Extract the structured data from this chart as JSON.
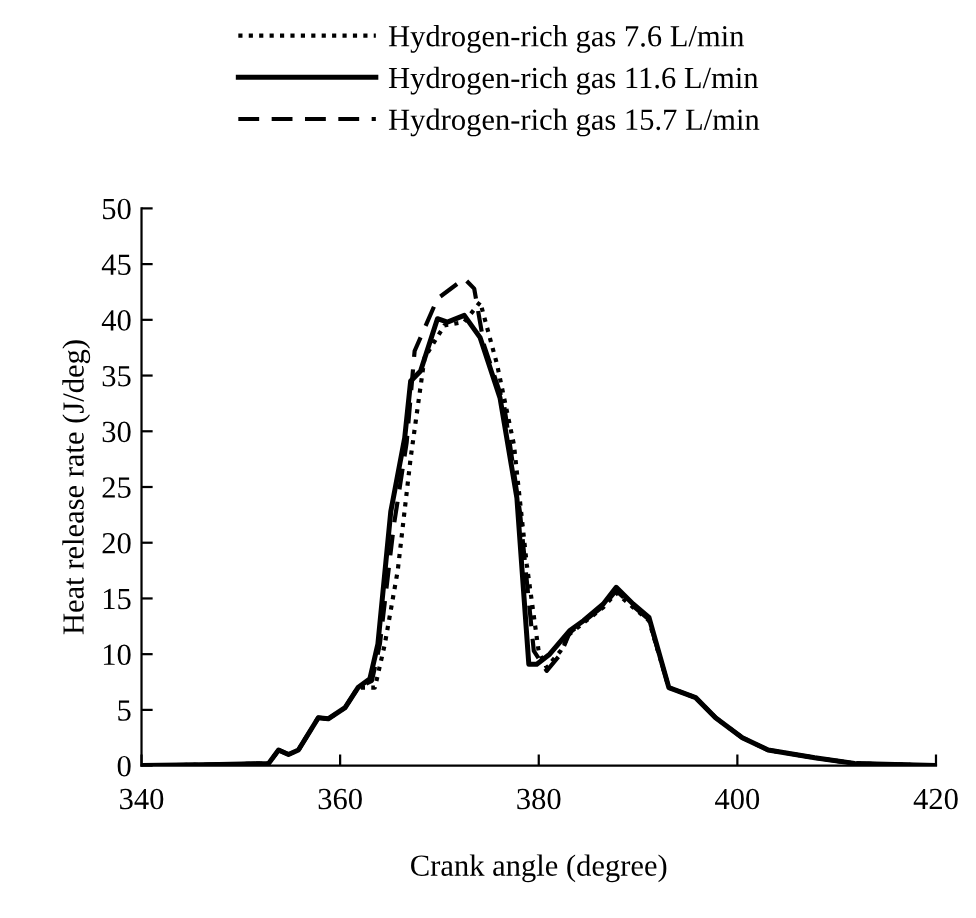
{
  "chart_data": {
    "type": "line",
    "xlabel": "Crank angle (degree)",
    "ylabel": "Heat release rate (J/deg)",
    "xlim": [
      340,
      420
    ],
    "ylim": [
      0,
      50
    ],
    "xticks": [
      340,
      360,
      380,
      400,
      420
    ],
    "yticks": [
      0,
      5,
      10,
      15,
      20,
      25,
      30,
      35,
      40,
      45,
      50
    ],
    "grid": false,
    "legend": "top",
    "marker": "none",
    "series": [
      {
        "name": "Hydrogen-rich gas 7.6 L/min",
        "color": "#000000",
        "line_style": "dotted",
        "x": [
          340,
          347.8,
          352.8,
          353.8,
          354.8,
          355.8,
          357.8,
          358.8,
          360.5,
          361.8,
          363.5,
          364.5,
          365.8,
          367.1,
          368.5,
          370.5,
          372.5,
          374.1,
          375.8,
          377.5,
          378.8,
          380,
          380.8,
          382.2,
          383.1,
          384.5,
          386.5,
          387.8,
          389.5,
          391.1,
          393.1,
          395.8,
          397.8,
          400.5,
          403.1,
          407.8,
          411.8,
          420
        ],
        "values": [
          0,
          0.1,
          0.2,
          1.4,
          1.0,
          1.4,
          4.3,
          4.2,
          5.2,
          7.0,
          7.0,
          10.9,
          17.5,
          27.6,
          36.6,
          39.5,
          39.8,
          41.6,
          36,
          28.8,
          18,
          10.2,
          8.8,
          10.3,
          11.8,
          12.8,
          14.2,
          15.5,
          14.2,
          13,
          7,
          6.1,
          4.3,
          2.5,
          1.4,
          0.7,
          0.2,
          0
        ]
      },
      {
        "name": "Hydrogen-rich gas 11.6 L/min",
        "color": "#000000",
        "line_style": "solid",
        "x": [
          340,
          347.8,
          352.8,
          353.8,
          354.8,
          355.8,
          357.8,
          358.8,
          360.5,
          361.8,
          363,
          363.8,
          365.1,
          366.5,
          367.1,
          368.1,
          369.8,
          370.8,
          372.5,
          374.1,
          376.1,
          377.8,
          379,
          379.8,
          381.1,
          383.1,
          384.5,
          386.5,
          387.8,
          389.5,
          391.1,
          393.1,
          395.8,
          397.8,
          400.5,
          403.1,
          407.8,
          411.8,
          420
        ],
        "values": [
          0,
          0.1,
          0.2,
          1.4,
          1.0,
          1.4,
          4.3,
          4.2,
          5.2,
          7.0,
          7.8,
          10.9,
          22.8,
          29.4,
          34.5,
          35.4,
          40.1,
          39.8,
          40.4,
          38.4,
          33,
          24,
          9.1,
          9.1,
          10,
          12.1,
          13,
          14.5,
          16,
          14.5,
          13.3,
          7,
          6.1,
          4.3,
          2.5,
          1.4,
          0.7,
          0.2,
          0
        ]
      },
      {
        "name": "Hydrogen-rich gas 15.7 L/min",
        "color": "#000000",
        "line_style": "dashed",
        "x": [
          340,
          347.8,
          352.8,
          353.8,
          354.8,
          355.8,
          357.8,
          358.8,
          360.5,
          361.8,
          363.2,
          364,
          365.4,
          366.7,
          367.5,
          369.8,
          372.5,
          373.5,
          374.5,
          376.5,
          378.1,
          379.5,
          380.8,
          382.2,
          383.1,
          384.5,
          386.5,
          387.8,
          389.5,
          391.1,
          393.1,
          395.8,
          397.8,
          400.5,
          403.1,
          407.8,
          411.8,
          420
        ],
        "values": [
          0,
          0.1,
          0.2,
          1.4,
          1.0,
          1.4,
          4.3,
          4.2,
          5.2,
          7.0,
          7.6,
          10.9,
          21.5,
          29,
          37.2,
          41.9,
          43.7,
          42.8,
          37.7,
          32.4,
          22.8,
          10.3,
          8.5,
          10,
          11.9,
          12.9,
          14.3,
          15.7,
          14.3,
          13.1,
          7,
          6.1,
          4.3,
          2.5,
          1.4,
          0.7,
          0.2,
          0
        ]
      }
    ]
  }
}
